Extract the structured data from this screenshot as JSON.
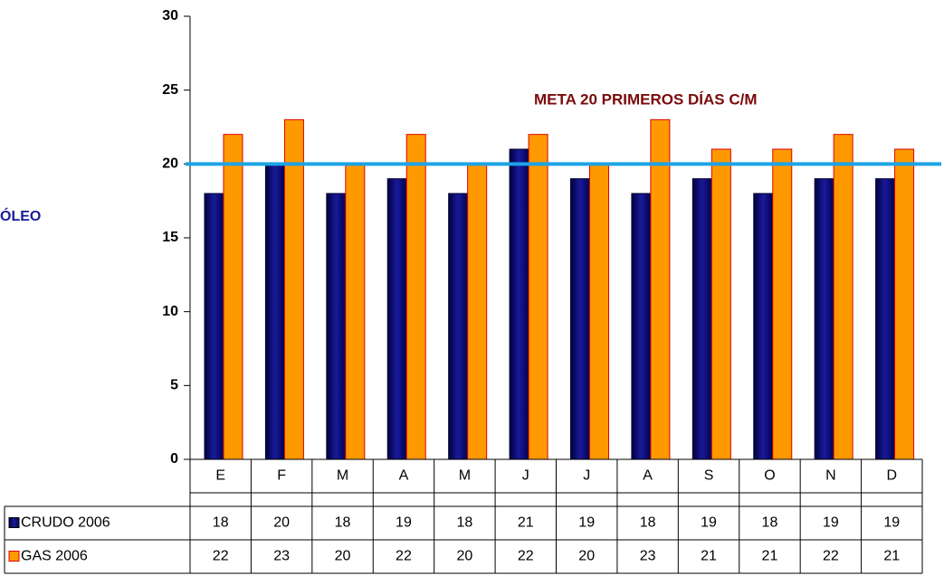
{
  "chart_data": {
    "type": "bar",
    "categories": [
      "E",
      "F",
      "M",
      "A",
      "M",
      "J",
      "J",
      "A",
      "S",
      "O",
      "N",
      "D"
    ],
    "series": [
      {
        "name": "CRUDO 2006",
        "color": "#0a0a7a",
        "values": [
          18,
          20,
          18,
          19,
          18,
          21,
          19,
          18,
          19,
          18,
          19,
          19
        ]
      },
      {
        "name": "GAS 2006",
        "color": "#ff9900",
        "values": [
          22,
          23,
          20,
          22,
          20,
          22,
          20,
          23,
          21,
          21,
          22,
          21
        ]
      }
    ],
    "ylim": [
      0,
      30
    ],
    "yticks": [
      0,
      5,
      10,
      15,
      20,
      25,
      30
    ],
    "grid": false,
    "target": 20,
    "target_color": "#1ea3e6",
    "annotation": "META 20 PRIMEROS DÍAS C/M",
    "side_label": "ÓLEO"
  }
}
